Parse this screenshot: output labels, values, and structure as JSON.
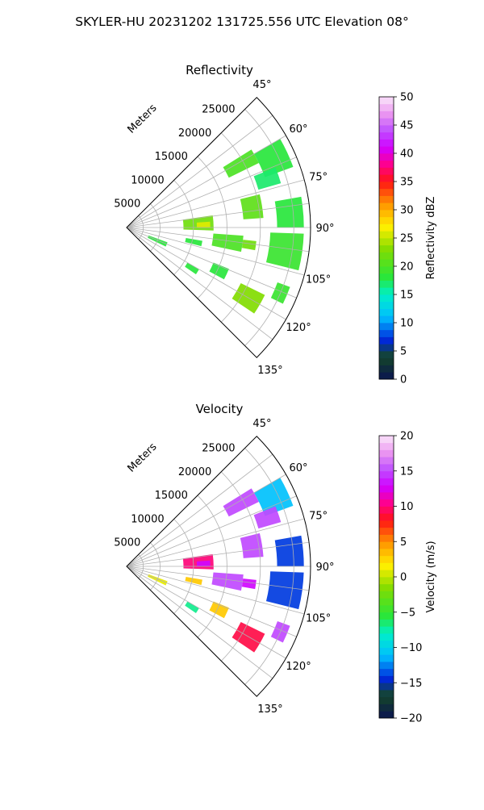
{
  "figure": {
    "title": "SKYLER-HU  20231202  131725.556 UTC Elevation 08°"
  },
  "chart_data": [
    {
      "type": "heatmap",
      "projection": "polar-sector",
      "title": "Reflectivity",
      "r_axis_label": "Meters",
      "r_ticks": [
        5000,
        10000,
        15000,
        20000,
        25000
      ],
      "r_max": 27500,
      "azimuth_range_deg": [
        45,
        135
      ],
      "azimuth_ticks_deg": [
        45,
        60,
        75,
        90,
        105,
        120,
        135
      ],
      "grid": true,
      "colorbar": {
        "label": "Reflectivity dBZ",
        "min": 0,
        "max": 50,
        "ticks": [
          0,
          5,
          10,
          15,
          20,
          25,
          30,
          35,
          40,
          45,
          50
        ]
      },
      "echo_regions": [
        {
          "az": [
            58,
            64
          ],
          "r": [
            17000,
            22000
          ],
          "value": 20
        },
        {
          "az": [
            60,
            70
          ],
          "r": [
            22000,
            26500
          ],
          "value": 18
        },
        {
          "az": [
            68,
            74
          ],
          "r": [
            20500,
            24000
          ],
          "value": 17
        },
        {
          "az": [
            76,
            86
          ],
          "r": [
            17500,
            20500
          ],
          "value": 21
        },
        {
          "az": [
            80,
            90
          ],
          "r": [
            22500,
            26500
          ],
          "value": 18
        },
        {
          "az": [
            82,
            92
          ],
          "r": [
            8500,
            13000
          ],
          "value": 22
        },
        {
          "az": [
            86,
            90
          ],
          "r": [
            10500,
            12500
          ],
          "value": 26
        },
        {
          "az": [
            94,
            102
          ],
          "r": [
            13000,
            17500
          ],
          "value": 20
        },
        {
          "az": [
            96,
            100
          ],
          "r": [
            17500,
            19500
          ],
          "value": 22
        },
        {
          "az": [
            92,
            104
          ],
          "r": [
            21500,
            26500
          ],
          "value": 19
        },
        {
          "az": [
            100,
            104
          ],
          "r": [
            9000,
            11500
          ],
          "value": 18
        },
        {
          "az": [
            110,
            116
          ],
          "r": [
            3500,
            6500
          ],
          "value": 18
        },
        {
          "az": [
            112,
            118
          ],
          "r": [
            14000,
            16500
          ],
          "value": 18
        },
        {
          "az": [
            116,
            124
          ],
          "r": [
            19000,
            23000
          ],
          "value": 23
        },
        {
          "az": [
            110,
            116
          ],
          "r": [
            24000,
            26000
          ],
          "value": 19
        },
        {
          "az": [
            120,
            124
          ],
          "r": [
            10500,
            12500
          ],
          "value": 18
        }
      ]
    },
    {
      "type": "heatmap",
      "projection": "polar-sector",
      "title": "Velocity",
      "r_axis_label": "Meters",
      "r_ticks": [
        5000,
        10000,
        15000,
        20000,
        25000
      ],
      "r_max": 27500,
      "azimuth_range_deg": [
        45,
        135
      ],
      "azimuth_ticks_deg": [
        45,
        60,
        75,
        90,
        105,
        120,
        135
      ],
      "grid": true,
      "colorbar": {
        "label": "Velocity (m/s)",
        "min": -20,
        "max": 20,
        "ticks": [
          -20,
          -15,
          -10,
          -5,
          0,
          5,
          10,
          15,
          20
        ]
      },
      "echo_regions": [
        {
          "az": [
            58,
            64
          ],
          "r": [
            17000,
            22000
          ],
          "value": 15
        },
        {
          "az": [
            60,
            70
          ],
          "r": [
            22000,
            26500
          ],
          "value": -11
        },
        {
          "az": [
            68,
            74
          ],
          "r": [
            20500,
            24000
          ],
          "value": 15
        },
        {
          "az": [
            76,
            86
          ],
          "r": [
            17500,
            20500
          ],
          "value": 15
        },
        {
          "az": [
            80,
            90
          ],
          "r": [
            22500,
            26500
          ],
          "value": -14
        },
        {
          "az": [
            82,
            92
          ],
          "r": [
            8500,
            13000
          ],
          "value": 10
        },
        {
          "az": [
            86,
            90
          ],
          "r": [
            10500,
            12500
          ],
          "value": 13
        },
        {
          "az": [
            94,
            102
          ],
          "r": [
            13000,
            17500
          ],
          "value": 15
        },
        {
          "az": [
            96,
            100
          ],
          "r": [
            17500,
            19500
          ],
          "value": 13
        },
        {
          "az": [
            92,
            104
          ],
          "r": [
            21500,
            26500
          ],
          "value": -14
        },
        {
          "az": [
            100,
            104
          ],
          "r": [
            9000,
            11500
          ],
          "value": 3
        },
        {
          "az": [
            110,
            116
          ],
          "r": [
            3500,
            6500
          ],
          "value": 1
        },
        {
          "az": [
            112,
            118
          ],
          "r": [
            14000,
            16500
          ],
          "value": 3
        },
        {
          "az": [
            116,
            124
          ],
          "r": [
            19000,
            23000
          ],
          "value": 9
        },
        {
          "az": [
            110,
            116
          ],
          "r": [
            24000,
            26000
          ],
          "value": 15
        },
        {
          "az": [
            120,
            124
          ],
          "r": [
            10500,
            12500
          ],
          "value": -7
        }
      ]
    }
  ]
}
